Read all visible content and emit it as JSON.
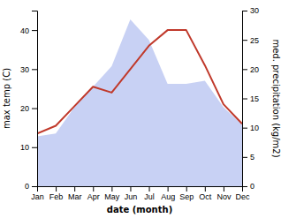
{
  "chart_data": {
    "type": "line",
    "categories": [
      "Jan",
      "Feb",
      "Mar",
      "Apr",
      "May",
      "Jun",
      "Jul",
      "Aug",
      "Sep",
      "Oct",
      "Nov",
      "Dec"
    ],
    "series": [
      {
        "type": "area",
        "color": "#b0bef0",
        "axis": "y2",
        "values": [
          8.5,
          9.0,
          13.5,
          17.0,
          20.5,
          28.5,
          25.0,
          17.5,
          17.5,
          18.0,
          13.5,
          10.5
        ]
      },
      {
        "type": "line",
        "color": "#c0392b",
        "values": [
          13.5,
          15.5,
          20.5,
          25.5,
          24.0,
          30.0,
          36.0,
          40.0,
          40.0,
          31.0,
          21.0,
          16.0
        ]
      }
    ],
    "xlabel": "date (month)",
    "ylabel": "max temp (C)",
    "y2label": "med. precipitation (kg/m2)",
    "ylim": [
      0,
      45
    ],
    "yticks": [
      0,
      10,
      20,
      30,
      40
    ],
    "y2lim": [
      0,
      30
    ],
    "y2ticks": [
      0,
      5,
      10,
      15,
      20,
      25,
      30
    ]
  }
}
